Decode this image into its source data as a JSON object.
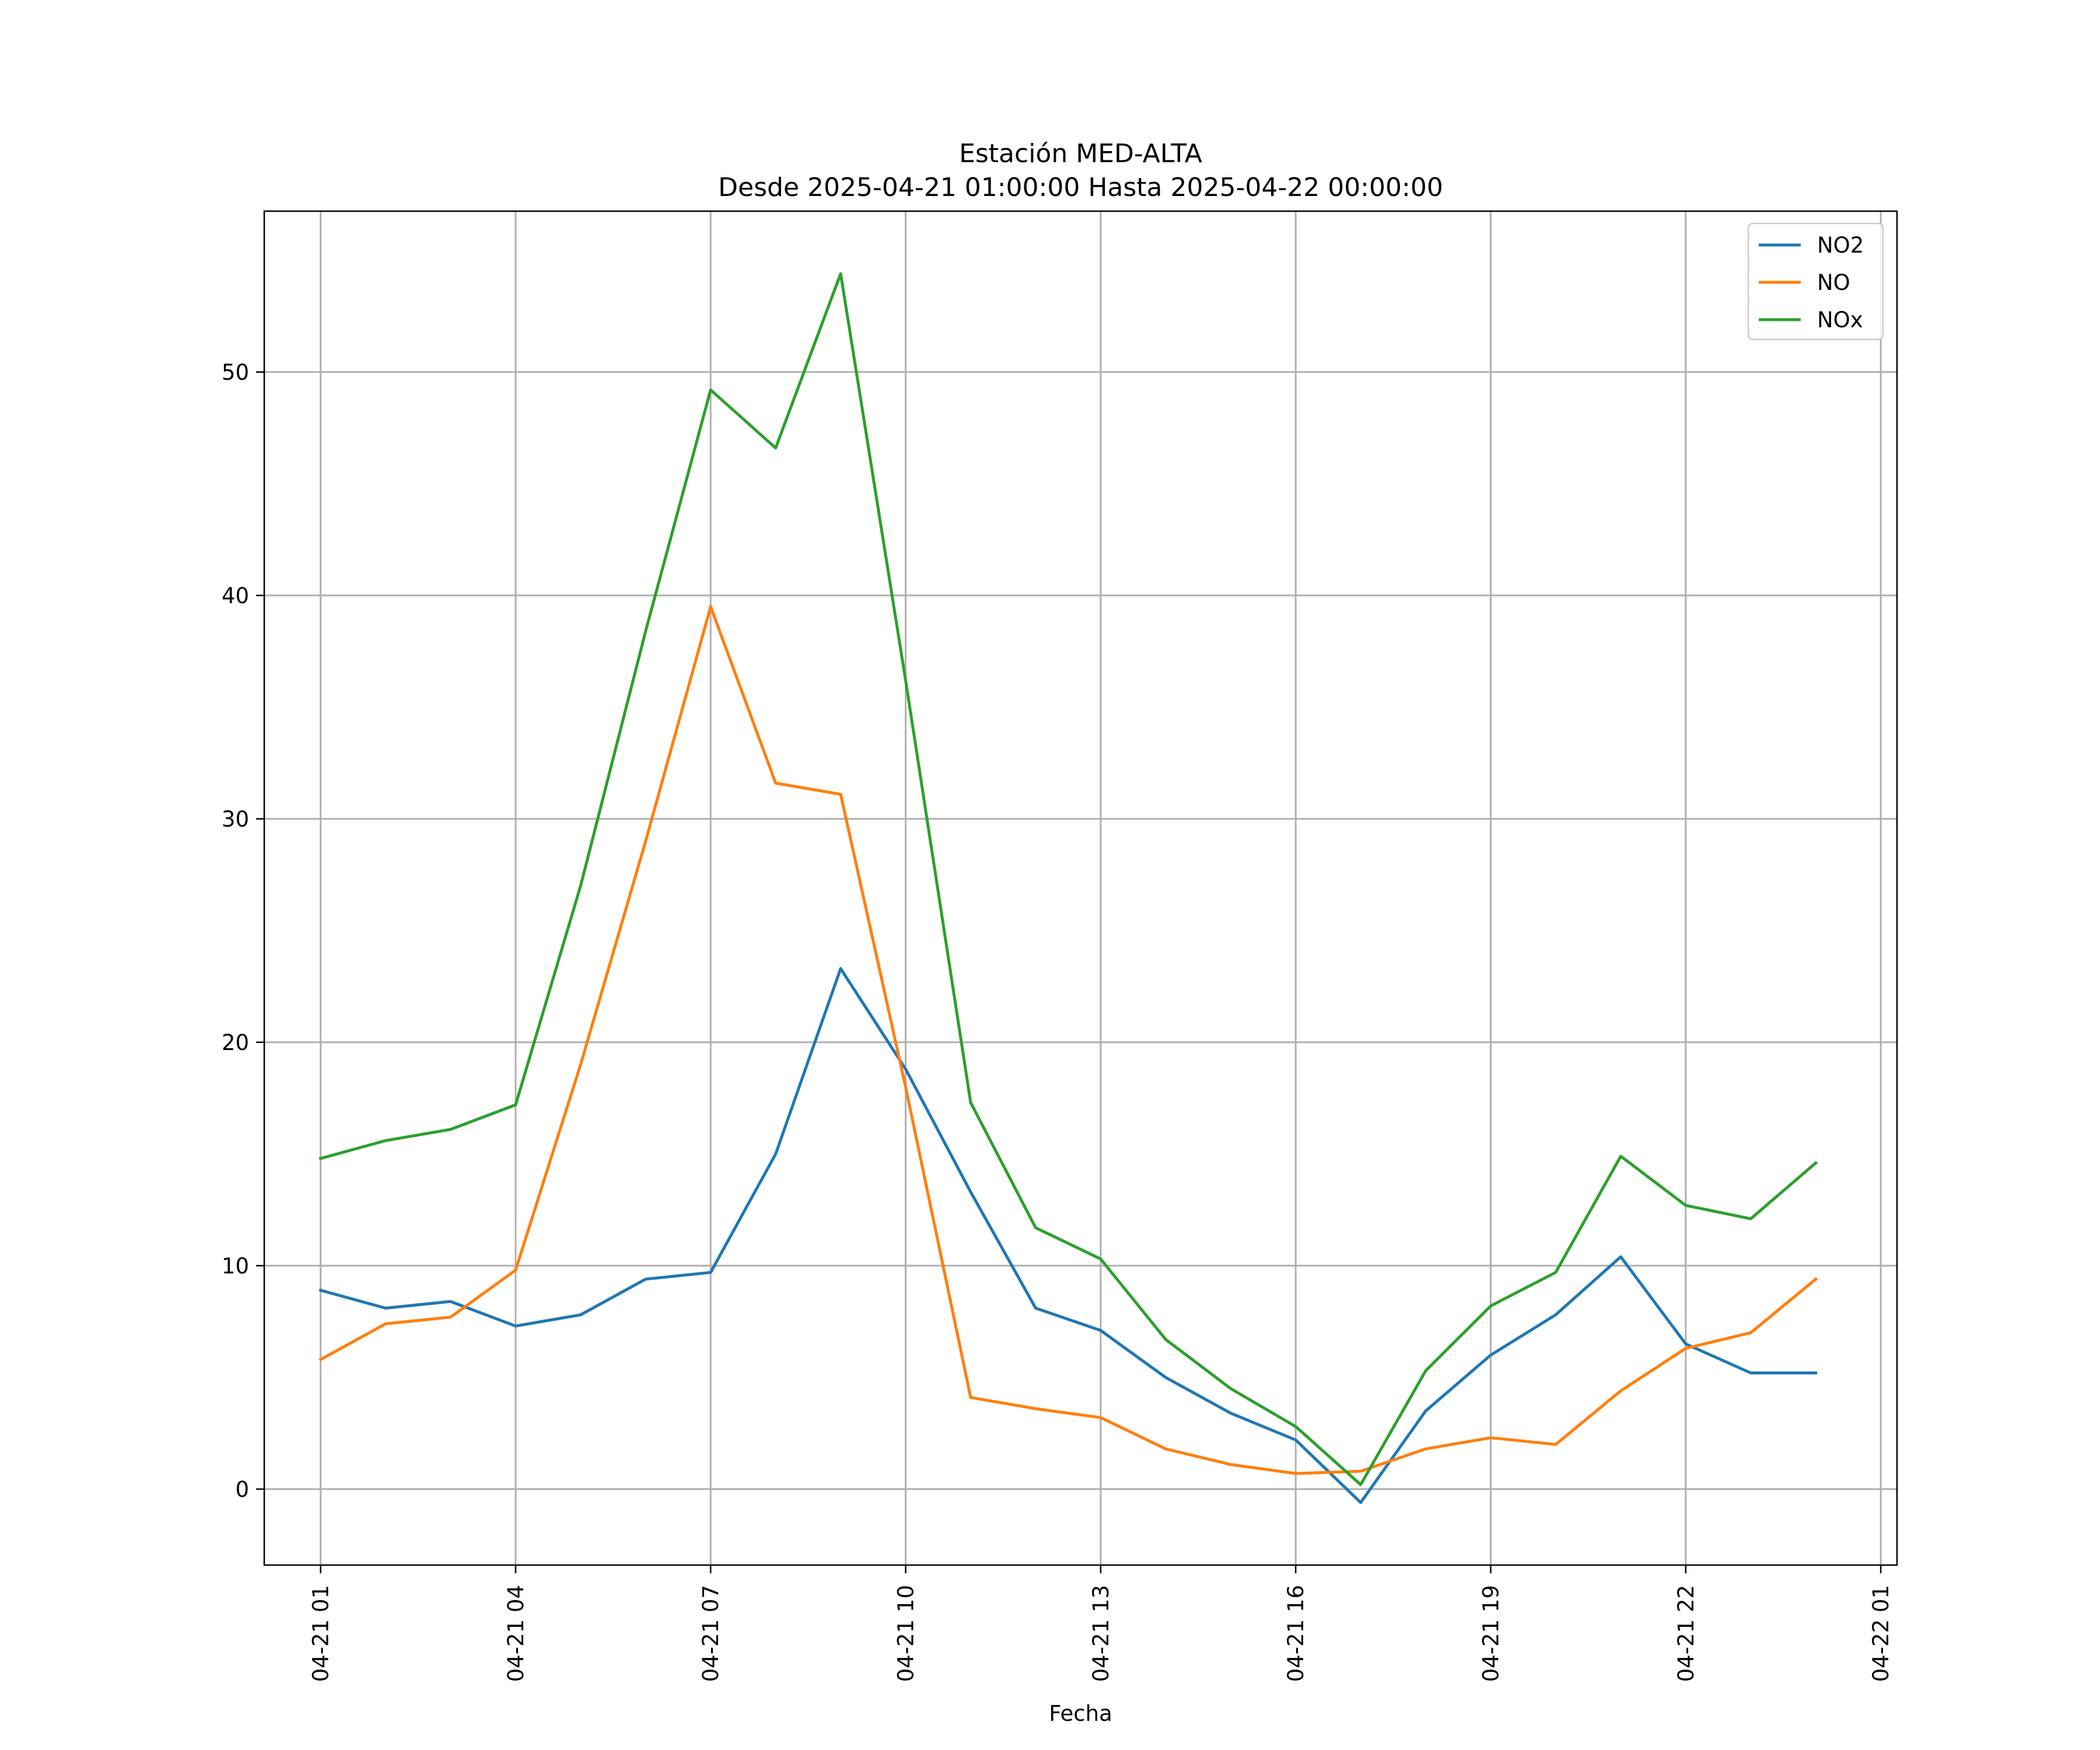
{
  "chart_data": {
    "type": "line",
    "title": "Estación MED-ALTA",
    "subtitle": "Desde 2025-04-21 01:00:00 Hasta 2025-04-22 00:00:00",
    "xlabel": "Fecha",
    "ylabel": "",
    "x": [
      "2025-04-21 01:00",
      "2025-04-21 02:00",
      "2025-04-21 03:00",
      "2025-04-21 04:00",
      "2025-04-21 05:00",
      "2025-04-21 06:00",
      "2025-04-21 07:00",
      "2025-04-21 08:00",
      "2025-04-21 09:00",
      "2025-04-21 10:00",
      "2025-04-21 11:00",
      "2025-04-21 12:00",
      "2025-04-21 13:00",
      "2025-04-21 14:00",
      "2025-04-21 15:00",
      "2025-04-21 16:00",
      "2025-04-21 17:00",
      "2025-04-21 18:00",
      "2025-04-21 19:00",
      "2025-04-21 20:00",
      "2025-04-21 21:00",
      "2025-04-21 22:00",
      "2025-04-21 23:00",
      "2025-04-22 00:00"
    ],
    "xlim": [
      "2025-04-21 00:08",
      "2025-04-22 01:15"
    ],
    "x_ticks": [
      "2025-04-21 01:00",
      "2025-04-21 04:00",
      "2025-04-21 07:00",
      "2025-04-21 10:00",
      "2025-04-21 13:00",
      "2025-04-21 16:00",
      "2025-04-21 19:00",
      "2025-04-21 22:00",
      "2025-04-22 01:00"
    ],
    "x_tick_labels": [
      "04-21 01",
      "04-21 04",
      "04-21 07",
      "04-21 10",
      "04-21 13",
      "04-21 16",
      "04-21 19",
      "04-21 22",
      "04-22 01"
    ],
    "ylim": [
      -3.4,
      57.2
    ],
    "y_ticks": [
      0,
      10,
      20,
      30,
      40,
      50
    ],
    "y_tick_labels": [
      "0",
      "10",
      "20",
      "30",
      "40",
      "50"
    ],
    "grid": true,
    "legend_position": "top-right",
    "series": [
      {
        "name": "NO2",
        "color": "#1f77b4",
        "values": [
          8.9,
          8.1,
          8.4,
          7.3,
          7.8,
          9.4,
          9.7,
          15.0,
          23.3,
          18.8,
          13.3,
          8.1,
          7.1,
          5.0,
          3.4,
          2.2,
          -0.6,
          3.5,
          6.0,
          7.8,
          10.4,
          6.5,
          5.2,
          5.2
        ]
      },
      {
        "name": "NO",
        "color": "#ff7f0e",
        "values": [
          5.8,
          7.4,
          7.7,
          9.8,
          19.0,
          29.0,
          39.5,
          31.6,
          31.1,
          18.0,
          4.1,
          3.6,
          3.2,
          1.8,
          1.1,
          0.7,
          0.8,
          1.8,
          2.3,
          2.0,
          4.4,
          6.3,
          7.0,
          9.4
        ]
      },
      {
        "name": "NOx",
        "color": "#2ca02c",
        "values": [
          14.8,
          15.6,
          16.1,
          17.2,
          27.0,
          38.4,
          49.2,
          46.6,
          54.4,
          36.2,
          17.3,
          11.7,
          10.3,
          6.7,
          4.5,
          2.8,
          0.2,
          5.3,
          8.2,
          9.7,
          14.9,
          12.7,
          12.1,
          14.6
        ]
      }
    ]
  }
}
